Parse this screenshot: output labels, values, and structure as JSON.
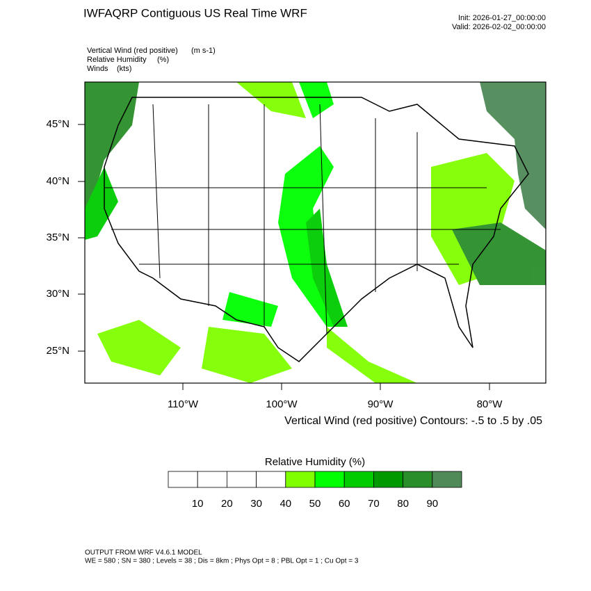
{
  "header": {
    "title": "IWFAQRP Contiguous US Real Time WRF",
    "init": "Init: 2026-01-27_00:00:00",
    "valid": "Valid: 2026-02-02_00:00:00"
  },
  "fields": [
    {
      "name": "Vertical Wind (red positive)",
      "units": "(m s-1)"
    },
    {
      "name": "Relative Humidity",
      "units": "(%)"
    },
    {
      "name": "Winds",
      "units": "(kts)"
    }
  ],
  "lat_labels": [
    "45°N",
    "40°N",
    "35°N",
    "30°N",
    "25°N"
  ],
  "lon_labels": [
    "110°W",
    "100°W",
    "90°W",
    "80°W"
  ],
  "contour_note": "Vertical Wind (red positive) Contours: -.5 to .5 by .05",
  "colorbar": {
    "title": "Relative Humidity  (%)",
    "colors": [
      "#ffffff",
      "#ffffff",
      "#ffffff",
      "#ffffff",
      "#80ff00",
      "#00ff00",
      "#00cc00",
      "#009900",
      "#2a8f2a",
      "#4f8a58"
    ],
    "labels": [
      "10",
      "20",
      "30",
      "40",
      "50",
      "60",
      "70",
      "80",
      "90"
    ]
  },
  "footer": {
    "line1": "OUTPUT FROM WRF V4.6.1 MODEL",
    "line2": "WE = 580 ; SN = 380 ; Levels = 38 ; Dis = 8km ; Phys Opt = 8 ; PBL Opt = 1 ; Cu Opt = 3"
  }
}
